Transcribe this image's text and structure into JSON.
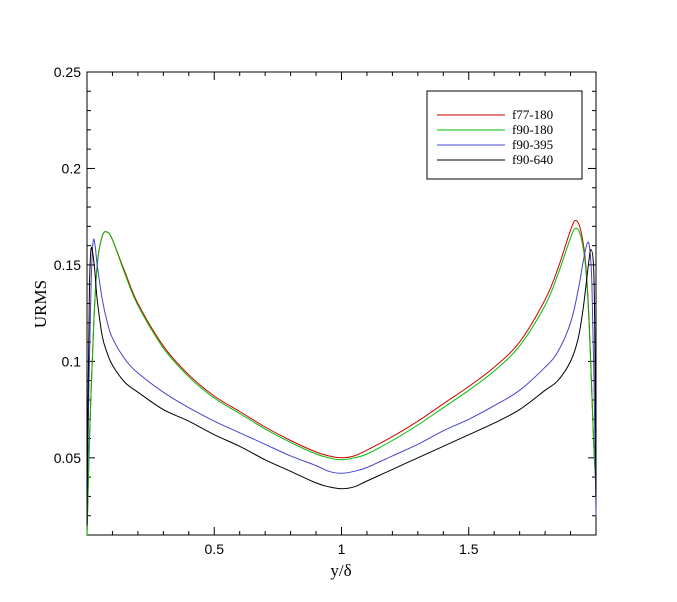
{
  "chart_data": {
    "type": "line",
    "xlabel": "y/δ",
    "ylabel": "URMS",
    "xlim": [
      0,
      2
    ],
    "ylim": [
      0.01,
      0.25
    ],
    "x_ticks": [
      0.5,
      1,
      1.5
    ],
    "x_tick_labels": [
      "0.5",
      "1",
      "1.5"
    ],
    "y_ticks": [
      0.05,
      0.1,
      0.15,
      0.2,
      0.25
    ],
    "y_tick_labels": [
      "0.05",
      "0.1",
      "0.15",
      "0.2",
      "0.25"
    ],
    "grid": false,
    "legend_position": "top-right",
    "series": [
      {
        "name": "f77-180",
        "color": "#cc0000",
        "x": [
          0,
          0.01,
          0.025,
          0.04,
          0.06,
          0.08,
          0.1,
          0.15,
          0.2,
          0.3,
          0.4,
          0.5,
          0.6,
          0.7,
          0.8,
          0.9,
          0.95,
          1.0,
          1.05,
          1.1,
          1.2,
          1.3,
          1.4,
          1.5,
          1.6,
          1.7,
          1.8,
          1.85,
          1.9,
          1.92,
          1.94,
          1.96,
          1.975,
          1.99,
          2.0
        ],
        "y": [
          0.01,
          0.06,
          0.115,
          0.15,
          0.165,
          0.167,
          0.163,
          0.146,
          0.13,
          0.108,
          0.093,
          0.082,
          0.074,
          0.066,
          0.059,
          0.053,
          0.051,
          0.05,
          0.051,
          0.054,
          0.061,
          0.069,
          0.078,
          0.087,
          0.097,
          0.11,
          0.132,
          0.148,
          0.168,
          0.173,
          0.168,
          0.15,
          0.115,
          0.06,
          0.035
        ]
      },
      {
        "name": "f90-180",
        "color": "#00bb00",
        "x": [
          0,
          0.01,
          0.025,
          0.04,
          0.06,
          0.08,
          0.1,
          0.15,
          0.2,
          0.3,
          0.4,
          0.5,
          0.6,
          0.7,
          0.8,
          0.9,
          0.95,
          1.0,
          1.05,
          1.1,
          1.2,
          1.3,
          1.4,
          1.5,
          1.6,
          1.7,
          1.8,
          1.85,
          1.9,
          1.92,
          1.94,
          1.96,
          1.975,
          1.99,
          2.0
        ],
        "y": [
          0.01,
          0.06,
          0.115,
          0.15,
          0.165,
          0.167,
          0.163,
          0.145,
          0.129,
          0.107,
          0.092,
          0.081,
          0.073,
          0.065,
          0.058,
          0.052,
          0.05,
          0.049,
          0.05,
          0.052,
          0.059,
          0.067,
          0.076,
          0.085,
          0.095,
          0.108,
          0.129,
          0.145,
          0.164,
          0.169,
          0.165,
          0.148,
          0.113,
          0.06,
          0.035
        ]
      },
      {
        "name": "f90-395",
        "color": "#4444cc",
        "x": [
          0,
          0.008,
          0.016,
          0.024,
          0.032,
          0.04,
          0.06,
          0.08,
          0.1,
          0.15,
          0.2,
          0.3,
          0.4,
          0.5,
          0.6,
          0.7,
          0.8,
          0.9,
          0.95,
          1.0,
          1.05,
          1.1,
          1.2,
          1.3,
          1.4,
          1.5,
          1.6,
          1.7,
          1.8,
          1.85,
          1.9,
          1.93,
          1.95,
          1.965,
          1.975,
          1.984,
          1.992,
          2.0
        ],
        "y": [
          0.02,
          0.09,
          0.14,
          0.162,
          0.16,
          0.15,
          0.132,
          0.12,
          0.112,
          0.101,
          0.094,
          0.084,
          0.076,
          0.069,
          0.063,
          0.057,
          0.051,
          0.046,
          0.043,
          0.042,
          0.043,
          0.045,
          0.051,
          0.057,
          0.064,
          0.07,
          0.077,
          0.085,
          0.097,
          0.105,
          0.12,
          0.137,
          0.152,
          0.161,
          0.159,
          0.14,
          0.09,
          0.02
        ]
      },
      {
        "name": "f90-640",
        "color": "#000000",
        "x": [
          0,
          0.005,
          0.01,
          0.015,
          0.02,
          0.03,
          0.04,
          0.06,
          0.08,
          0.1,
          0.15,
          0.2,
          0.3,
          0.4,
          0.5,
          0.6,
          0.7,
          0.8,
          0.9,
          0.95,
          1.0,
          1.05,
          1.1,
          1.2,
          1.3,
          1.4,
          1.5,
          1.6,
          1.7,
          1.8,
          1.85,
          1.9,
          1.93,
          1.95,
          1.97,
          1.98,
          1.99,
          1.995,
          2.0
        ],
        "y": [
          0.015,
          0.09,
          0.14,
          0.157,
          0.158,
          0.148,
          0.132,
          0.113,
          0.104,
          0.098,
          0.089,
          0.084,
          0.075,
          0.069,
          0.062,
          0.056,
          0.049,
          0.043,
          0.037,
          0.035,
          0.034,
          0.035,
          0.038,
          0.044,
          0.05,
          0.056,
          0.062,
          0.068,
          0.075,
          0.085,
          0.09,
          0.1,
          0.112,
          0.128,
          0.15,
          0.158,
          0.15,
          0.12,
          0.03
        ]
      }
    ]
  }
}
